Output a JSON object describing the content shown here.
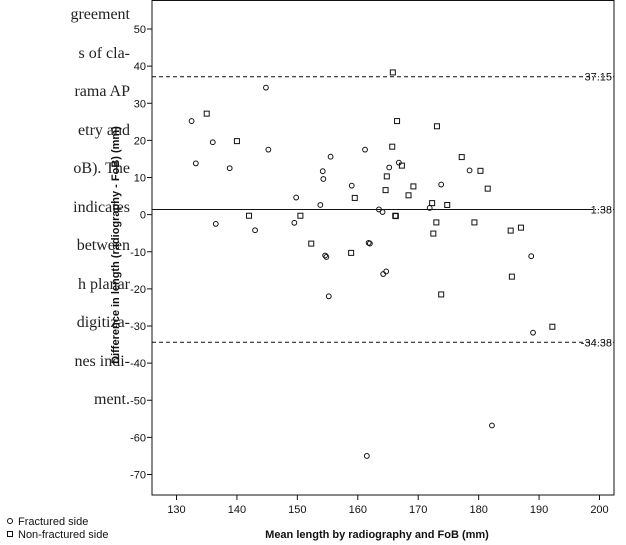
{
  "body_text": {
    "lines": [
      "greement",
      "s of cla-",
      "rama AP",
      "etry and",
      "oB). The",
      "indicates",
      "between",
      "h planar",
      "digitiza-",
      "nes indi-",
      "ment."
    ]
  },
  "chart_data": {
    "type": "scatter",
    "title": "",
    "xlabel": "Mean length by radiography and FoB (mm)",
    "ylabel": "Difference in length (radiography - FoB) (mm)",
    "xlim": [
      125,
      205
    ],
    "ylim": [
      -75,
      55
    ],
    "x_ticks": [
      130,
      140,
      150,
      160,
      170,
      180,
      190,
      200
    ],
    "y_ticks": [
      50,
      40,
      30,
      20,
      10,
      0,
      -10,
      -20,
      -30,
      -40,
      -50,
      -60,
      -70
    ],
    "grid": false,
    "legend_position": "bottom-left, outside plot",
    "reference_lines": [
      {
        "value": 37.15,
        "label": "37.15",
        "style": "dashed"
      },
      {
        "value": 1.38,
        "label": "1.38",
        "style": "solid"
      },
      {
        "value": -34.38,
        "label": "-34.38",
        "style": "dashed"
      }
    ],
    "series": [
      {
        "name": "Fractured side",
        "marker": "circle",
        "points": [
          [
            132.5,
            25.2
          ],
          [
            133.2,
            13.8
          ],
          [
            136,
            19.5
          ],
          [
            136.5,
            -2.5
          ],
          [
            138.8,
            12.5
          ],
          [
            143,
            -4.2
          ],
          [
            144.8,
            34.2
          ],
          [
            145.2,
            17.5
          ],
          [
            149.5,
            -2.2
          ],
          [
            149.8,
            4.6
          ],
          [
            153.8,
            2.6
          ],
          [
            154.2,
            11.7
          ],
          [
            154.3,
            9.6
          ],
          [
            154.6,
            -11
          ],
          [
            154.8,
            -11.4
          ],
          [
            155.2,
            -22
          ],
          [
            155.5,
            15.6
          ],
          [
            159,
            7.8
          ],
          [
            161.2,
            17.5
          ],
          [
            161.5,
            -65
          ],
          [
            161.8,
            -7.6
          ],
          [
            162,
            -7.8
          ],
          [
            163.5,
            1.4
          ],
          [
            164.1,
            0.7
          ],
          [
            164.2,
            -16
          ],
          [
            164.7,
            -15.3
          ],
          [
            165.2,
            12.7
          ],
          [
            166.8,
            14
          ],
          [
            171.9,
            1.8
          ],
          [
            173.8,
            8.1
          ],
          [
            178.5,
            11.9
          ],
          [
            182.2,
            -56.8
          ],
          [
            188.7,
            -11.2
          ],
          [
            189,
            -31.8
          ]
        ]
      },
      {
        "name": "Non-fractured side",
        "marker": "square",
        "points": [
          [
            135,
            27.2
          ],
          [
            140,
            19.8
          ],
          [
            142,
            -0.3
          ],
          [
            150.5,
            -0.3
          ],
          [
            152.3,
            -7.8
          ],
          [
            158.9,
            -10.3
          ],
          [
            159.5,
            4.5
          ],
          [
            164.6,
            6.6
          ],
          [
            164.8,
            10.3
          ],
          [
            165.7,
            18.3
          ],
          [
            165.8,
            38.3
          ],
          [
            166.2,
            -0.3
          ],
          [
            166.3,
            -0.4
          ],
          [
            166.5,
            25.2
          ],
          [
            167.3,
            13.2
          ],
          [
            168.4,
            5.2
          ],
          [
            169.2,
            7.6
          ],
          [
            172.3,
            3.1
          ],
          [
            172.5,
            -5.1
          ],
          [
            173,
            -2.1
          ],
          [
            173.1,
            23.8
          ],
          [
            173.8,
            -21.5
          ],
          [
            174.8,
            2.6
          ],
          [
            177.2,
            15.5
          ],
          [
            179.3,
            -2.1
          ],
          [
            180.3,
            11.8
          ],
          [
            181.5,
            7
          ],
          [
            185.3,
            -4.3
          ],
          [
            185.5,
            -16.7
          ],
          [
            187,
            -3.5
          ],
          [
            192.2,
            -30.2
          ]
        ]
      }
    ]
  },
  "colors": {
    "ink": "#111111",
    "background": "#ffffff"
  }
}
